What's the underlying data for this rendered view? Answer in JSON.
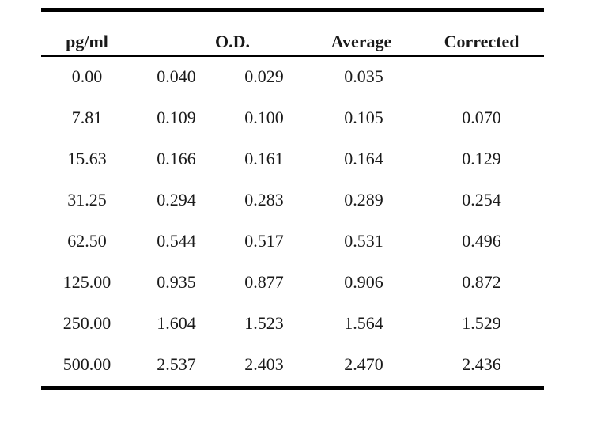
{
  "table": {
    "headers": {
      "concentration": "pg/ml",
      "od": "O.D.",
      "average": "Average",
      "corrected": "Corrected"
    },
    "rows": [
      {
        "conc": "0.00",
        "od1": "0.040",
        "od2": "0.029",
        "avg": "0.035",
        "corr": ""
      },
      {
        "conc": "7.81",
        "od1": "0.109",
        "od2": "0.100",
        "avg": "0.105",
        "corr": "0.070"
      },
      {
        "conc": "15.63",
        "od1": "0.166",
        "od2": "0.161",
        "avg": "0.164",
        "corr": "0.129"
      },
      {
        "conc": "31.25",
        "od1": "0.294",
        "od2": "0.283",
        "avg": "0.289",
        "corr": "0.254"
      },
      {
        "conc": "62.50",
        "od1": "0.544",
        "od2": "0.517",
        "avg": "0.531",
        "corr": "0.496"
      },
      {
        "conc": "125.00",
        "od1": "0.935",
        "od2": "0.877",
        "avg": "0.906",
        "corr": "0.872"
      },
      {
        "conc": "250.00",
        "od1": "1.604",
        "od2": "1.523",
        "avg": "1.564",
        "corr": "1.529"
      },
      {
        "conc": "500.00",
        "od1": "2.537",
        "od2": "2.403",
        "avg": "2.470",
        "corr": "2.436"
      }
    ]
  }
}
